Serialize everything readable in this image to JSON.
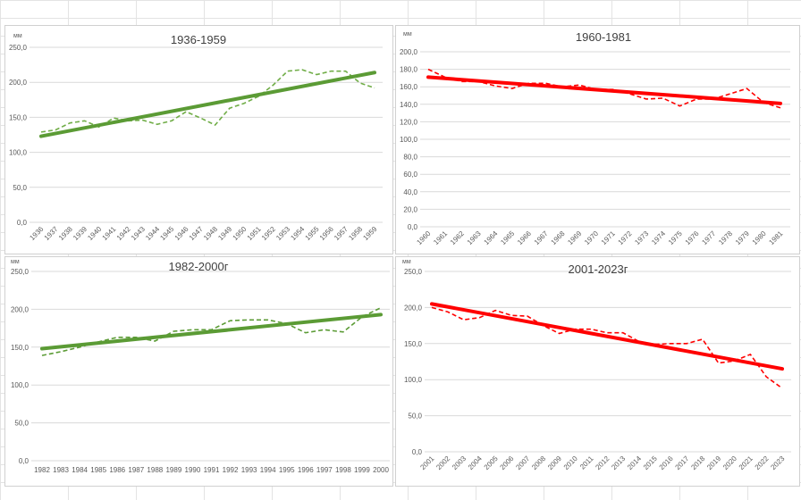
{
  "chart_data": [
    {
      "type": "line",
      "title": "1936-1959",
      "ylabel": "мм",
      "ylim": [
        0,
        250
      ],
      "ystep": 50,
      "x": [
        "1936",
        "1937",
        "1938",
        "1939",
        "1940",
        "1941",
        "1942",
        "1943",
        "1944",
        "1945",
        "1946",
        "1947",
        "1948",
        "1949",
        "1950",
        "1951",
        "1952",
        "1953",
        "1954",
        "1955",
        "1956",
        "1957",
        "1958",
        "1959"
      ],
      "values": [
        129,
        132,
        142,
        145,
        136,
        149,
        145,
        146,
        140,
        145,
        158,
        149,
        139,
        163,
        170,
        180,
        196,
        216,
        218,
        211,
        216,
        216,
        199,
        192
      ],
      "trend": [
        123,
        214
      ],
      "color": "#70ad47",
      "trend_color": "#5b9b35",
      "xlabel_rotation": "diagonal",
      "grid": true
    },
    {
      "type": "line",
      "title": "1960-1981",
      "ylabel": "мм",
      "ylim": [
        0,
        200
      ],
      "ystep": 20,
      "x": [
        "1960",
        "1961",
        "1962",
        "1963",
        "1964",
        "1965",
        "1966",
        "1967",
        "1968",
        "1969",
        "1970",
        "1971",
        "1972",
        "1973",
        "1974",
        "1975",
        "1976",
        "1977",
        "1978",
        "1979",
        "1980",
        "1981"
      ],
      "values": [
        180,
        171,
        166,
        166,
        161,
        158,
        164,
        164,
        160,
        162,
        157,
        157,
        152,
        146,
        147,
        138,
        146,
        146,
        152,
        158,
        142,
        136
      ],
      "trend": [
        171,
        141
      ],
      "color": "#ff0000",
      "trend_color": "#ff0000",
      "xlabel_rotation": "diagonal",
      "grid": true
    },
    {
      "type": "line",
      "title": "1982-2000г",
      "ylabel": "мм",
      "ylim": [
        0,
        250
      ],
      "ystep": 50,
      "x": [
        "1982",
        "1983",
        "1984",
        "1985",
        "1986",
        "1987",
        "1988",
        "1989",
        "1990",
        "1991",
        "1992",
        "1993",
        "1994",
        "1995",
        "1996",
        "1997",
        "1998",
        "1999",
        "2000"
      ],
      "values": [
        139,
        144,
        150,
        157,
        163,
        163,
        158,
        171,
        173,
        173,
        185,
        186,
        186,
        181,
        169,
        173,
        170,
        190,
        202
      ],
      "trend": [
        148,
        193
      ],
      "color": "#5b9b35",
      "trend_color": "#5b9b35",
      "xlabel_rotation": "horizontal",
      "grid": true
    },
    {
      "type": "line",
      "title": "2001-2023г",
      "ylabel": "мм",
      "ylim": [
        0,
        250
      ],
      "ystep": 50,
      "x": [
        "2001",
        "2002",
        "2003",
        "2004",
        "2005",
        "2006",
        "2007",
        "2008",
        "2009",
        "2010",
        "2011",
        "2012",
        "2013",
        "2014",
        "2015",
        "2016",
        "2017",
        "2018",
        "2019",
        "2020",
        "2021",
        "2022",
        "2023"
      ],
      "values": [
        200,
        194,
        183,
        186,
        196,
        189,
        188,
        175,
        164,
        170,
        170,
        165,
        165,
        153,
        149,
        150,
        150,
        156,
        123,
        126,
        135,
        104,
        88
      ],
      "trend": [
        205,
        115
      ],
      "color": "#ff0000",
      "trend_color": "#ff0000",
      "xlabel_rotation": "diagonal",
      "grid": true
    }
  ]
}
